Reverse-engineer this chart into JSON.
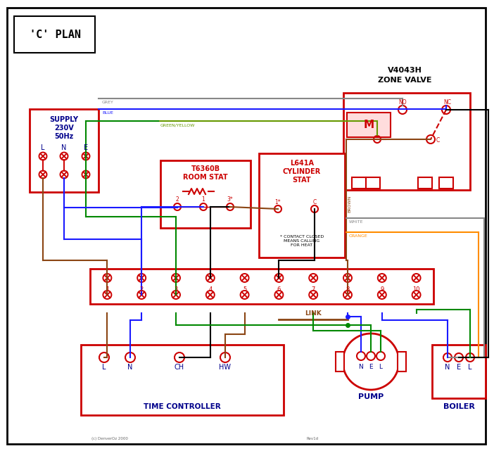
{
  "title": "'C' PLAN",
  "bg_color": "#ffffff",
  "border_color": "#000000",
  "red": "#cc0000",
  "blue": "#1a1aff",
  "green": "#008800",
  "brown": "#8B4513",
  "grey": "#888888",
  "orange": "#FF8C00",
  "green_yellow": "#669900",
  "navy": "#00008B",
  "zone_valve_text": [
    "V4043H",
    "ZONE VALVE"
  ],
  "room_stat_text": [
    "T6360B",
    "ROOM STAT"
  ],
  "cyl_stat_text": [
    "L641A",
    "CYLINDER",
    "STAT"
  ],
  "time_ctrl_text": "TIME CONTROLLER",
  "time_ctrl_labels": [
    "L",
    "N",
    "CH",
    "HW"
  ],
  "pump_text": "PUMP",
  "boiler_text": "BOILER",
  "terminal_labels": [
    "1",
    "2",
    "3",
    "4",
    "5",
    "6",
    "7",
    "8",
    "9",
    "10"
  ],
  "link_text": "LINK",
  "contact_note": "* CONTACT CLOSED\nMEANS CALLING\nFOR HEAT",
  "copyright": "(c) DenverOz 2000",
  "rev": "Rev1d"
}
